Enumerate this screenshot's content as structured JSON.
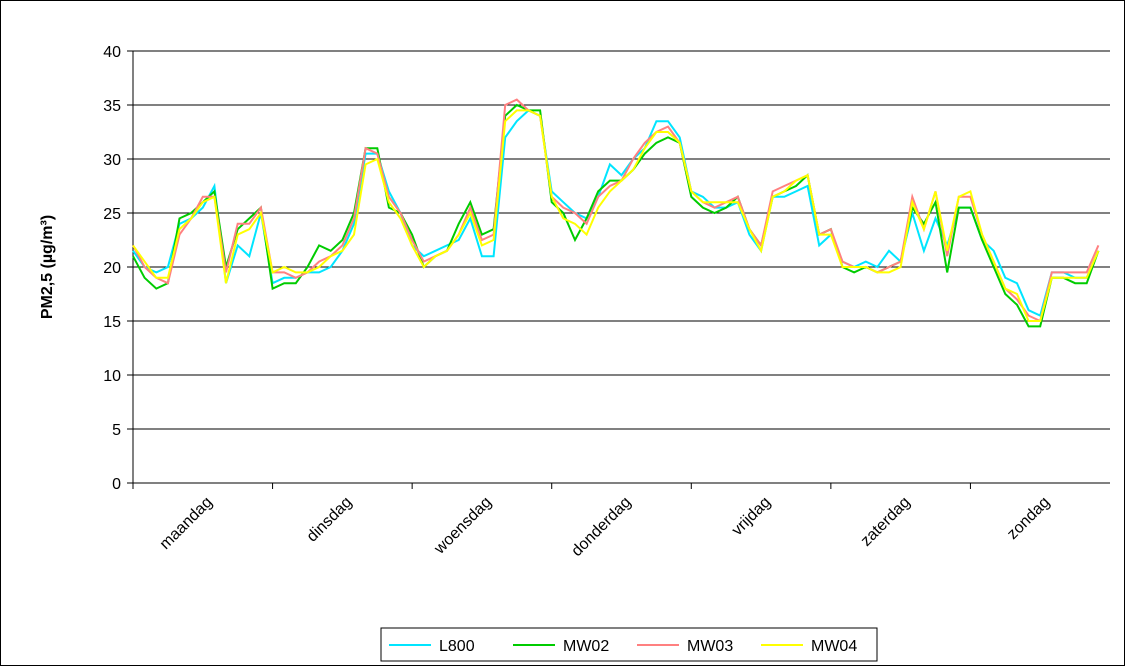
{
  "chart_data": {
    "type": "line",
    "y_label": "PM2,5 (µg/m³)",
    "x": [
      0,
      2,
      4,
      6,
      8,
      10,
      12,
      14,
      16,
      18,
      20,
      22,
      24,
      26,
      28,
      30,
      32,
      34,
      36,
      38,
      40,
      42,
      44,
      46,
      48,
      50,
      52,
      54,
      56,
      58,
      60,
      62,
      64,
      66,
      68,
      70,
      72,
      74,
      76,
      78,
      80,
      82,
      84,
      86,
      88,
      90,
      92,
      94,
      96,
      98,
      100,
      102,
      104,
      106,
      108,
      110,
      112,
      114,
      116,
      118,
      120,
      122,
      124,
      126,
      128,
      130,
      132,
      134,
      136,
      138,
      140,
      142,
      144,
      146,
      148,
      150,
      152,
      154,
      156,
      158,
      160,
      162,
      164,
      166
    ],
    "xlim": [
      0,
      168
    ],
    "xticks": [
      {
        "value": 0,
        "label": "maandag"
      },
      {
        "value": 24,
        "label": "dinsdag"
      },
      {
        "value": 48,
        "label": "woensdag"
      },
      {
        "value": 72,
        "label": "donderdag"
      },
      {
        "value": 96,
        "label": "vrijdag"
      },
      {
        "value": 120,
        "label": "zaterdag"
      },
      {
        "value": 144,
        "label": "zondag"
      }
    ],
    "ylim": [
      0,
      40
    ],
    "yticks": [
      0,
      5,
      10,
      15,
      20,
      25,
      30,
      35,
      40
    ],
    "grid": true,
    "legend": "bottom",
    "series": [
      {
        "name": "L800",
        "color": "#00e5ff",
        "values": [
          21.5,
          20,
          19.5,
          20,
          24,
          24.5,
          25.5,
          27.5,
          18.5,
          22,
          21,
          25,
          18.5,
          19,
          19,
          19.5,
          19.5,
          20,
          21.5,
          24,
          30.5,
          30.5,
          27,
          25,
          22,
          21,
          21.5,
          22,
          22.5,
          24.5,
          21,
          21,
          32,
          33.5,
          34.5,
          34,
          27,
          26,
          25,
          24.5,
          26.5,
          29.5,
          28.5,
          30,
          31,
          33.5,
          33.5,
          32,
          27,
          26.5,
          25.5,
          25.5,
          26,
          23,
          21.5,
          26.5,
          26.5,
          27,
          27.5,
          22,
          23,
          20.5,
          20,
          20.5,
          20,
          21.5,
          20.5,
          25,
          21.5,
          24.5,
          22,
          25.5,
          25.5,
          22.5,
          21.5,
          19,
          18.5,
          16,
          15.5,
          19.5,
          19.5,
          19,
          19,
          21.5
        ]
      },
      {
        "name": "MW02",
        "color": "#00cc00",
        "values": [
          21,
          19,
          18,
          18.5,
          24.5,
          25,
          26,
          27,
          20,
          23.5,
          24.5,
          25.5,
          18,
          18.5,
          18.5,
          20,
          22,
          21.5,
          22.5,
          25,
          31,
          31,
          25.5,
          25,
          23,
          20,
          21,
          21.5,
          24,
          26,
          23,
          23.5,
          34,
          35,
          34.5,
          34.5,
          26,
          25,
          22.5,
          24.5,
          27,
          28,
          28,
          29,
          30.5,
          31.5,
          32,
          31.5,
          26.5,
          25.5,
          25,
          25.5,
          26.5,
          23.5,
          22,
          26.5,
          27,
          27.5,
          28.5,
          23,
          23.5,
          20,
          19.5,
          20,
          19.5,
          20,
          20.5,
          25.5,
          24,
          26,
          19.5,
          25.5,
          25.5,
          22.5,
          20,
          17.5,
          16.5,
          14.5,
          14.5,
          19,
          19,
          18.5,
          18.5,
          21.5
        ]
      },
      {
        "name": "MW03",
        "color": "#ff8080",
        "values": [
          22,
          20,
          19,
          18.5,
          23,
          24.5,
          26.5,
          26.5,
          19.5,
          24,
          24,
          25.5,
          19.5,
          19.5,
          19,
          19.5,
          20.5,
          21,
          22,
          24.5,
          31,
          30.5,
          26.5,
          25,
          22.5,
          20.5,
          21,
          21.5,
          23,
          25.5,
          22.5,
          23,
          35,
          35.5,
          34.5,
          34,
          26.5,
          25.5,
          25,
          24,
          26.5,
          27.5,
          28,
          30,
          31.5,
          32.5,
          33,
          31.5,
          27,
          26,
          25.5,
          26,
          26.5,
          23.5,
          22,
          27,
          27.5,
          28,
          28.5,
          23,
          23.5,
          20.5,
          20,
          20,
          19.5,
          20,
          20.5,
          26.5,
          23.5,
          27,
          21,
          26.5,
          26.5,
          23,
          20.5,
          18,
          17,
          15.5,
          15,
          19.5,
          19.5,
          19.5,
          19.5,
          22
        ]
      },
      {
        "name": "MW04",
        "color": "#ffff00",
        "values": [
          22,
          20.5,
          19,
          19,
          23.5,
          24.5,
          26,
          26.5,
          18.5,
          23,
          23.5,
          25,
          19.5,
          20,
          19.5,
          19.5,
          20,
          21,
          21.5,
          23,
          29.5,
          30,
          26,
          24.5,
          22,
          20,
          21,
          21.5,
          23,
          25,
          22,
          22.5,
          33.5,
          34.5,
          34.5,
          34,
          26.5,
          24.5,
          24,
          23,
          25.5,
          27,
          28,
          29,
          31,
          32.5,
          32.5,
          31.5,
          27,
          26,
          26,
          26,
          26,
          23.5,
          21.5,
          26.5,
          27,
          28,
          28.5,
          23,
          23,
          20,
          20,
          20,
          19.5,
          19.5,
          20,
          26,
          23.5,
          27,
          21.5,
          26.5,
          27,
          23,
          20.5,
          18,
          17.5,
          15,
          15,
          19,
          19,
          19,
          19,
          21.5
        ]
      }
    ]
  }
}
